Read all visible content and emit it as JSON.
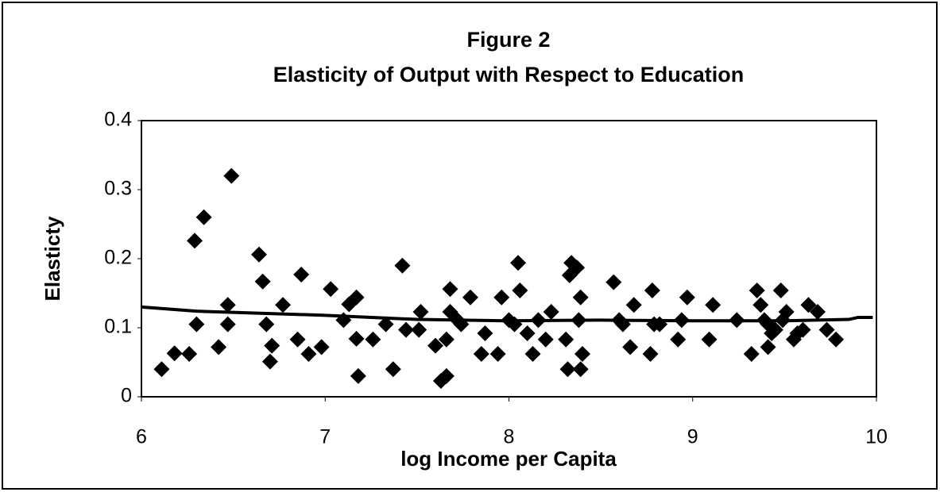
{
  "chart_data": {
    "type": "scatter",
    "title": "Figure 2",
    "subtitle": "Elasticity of Output with Respect to Education",
    "x_label": "log Income per Capita",
    "y_label": "Elasticty",
    "xlim": [
      6,
      10
    ],
    "xticks": [
      6,
      7,
      8,
      9,
      10
    ],
    "ylim": [
      0,
      0.4
    ],
    "yticks": [
      0,
      0.1,
      0.2,
      0.3,
      0.4
    ],
    "grid": false,
    "color": "#000000",
    "points": {
      "x": [
        6.11,
        6.18,
        6.26,
        6.29,
        6.34,
        6.3,
        6.42,
        6.47,
        6.47,
        6.49,
        6.64,
        6.66,
        6.68,
        6.71,
        6.7,
        6.77,
        6.85,
        6.87,
        6.91,
        6.98,
        7.03,
        7.1,
        7.13,
        7.17,
        7.17,
        7.18,
        7.26,
        7.33,
        7.37,
        7.42,
        7.44,
        7.51,
        7.52,
        7.6,
        7.63,
        7.66,
        7.66,
        7.68,
        7.68,
        7.72,
        7.74,
        7.79,
        7.85,
        7.87,
        7.94,
        7.96,
        8.0,
        8.03,
        8.05,
        8.06,
        8.1,
        8.13,
        8.16,
        8.2,
        8.23,
        8.31,
        8.32,
        8.33,
        8.34,
        8.37,
        8.38,
        8.39,
        8.4,
        8.39,
        8.57,
        8.6,
        8.62,
        8.66,
        8.68,
        8.77,
        8.78,
        8.79,
        8.82,
        8.92,
        8.94,
        8.97,
        9.09,
        9.11,
        9.24,
        9.32,
        9.35,
        9.37,
        9.39,
        9.41,
        9.41,
        9.43,
        9.45,
        9.48,
        9.49,
        9.51,
        9.55,
        9.57,
        9.6,
        9.63,
        9.68,
        9.73,
        9.78
      ],
      "y": [
        0.04,
        0.063,
        0.062,
        0.226,
        0.26,
        0.105,
        0.072,
        0.133,
        0.105,
        0.32,
        0.206,
        0.167,
        0.105,
        0.074,
        0.051,
        0.133,
        0.083,
        0.177,
        0.062,
        0.072,
        0.156,
        0.111,
        0.134,
        0.144,
        0.084,
        0.03,
        0.083,
        0.105,
        0.04,
        0.19,
        0.097,
        0.097,
        0.123,
        0.074,
        0.023,
        0.03,
        0.083,
        0.156,
        0.123,
        0.111,
        0.105,
        0.144,
        0.062,
        0.092,
        0.062,
        0.144,
        0.111,
        0.105,
        0.194,
        0.154,
        0.092,
        0.062,
        0.111,
        0.083,
        0.123,
        0.083,
        0.04,
        0.176,
        0.194,
        0.187,
        0.111,
        0.144,
        0.062,
        0.04,
        0.166,
        0.111,
        0.105,
        0.072,
        0.133,
        0.062,
        0.154,
        0.105,
        0.105,
        0.083,
        0.111,
        0.144,
        0.083,
        0.133,
        0.111,
        0.062,
        0.154,
        0.133,
        0.111,
        0.105,
        0.072,
        0.092,
        0.097,
        0.154,
        0.111,
        0.123,
        0.083,
        0.092,
        0.097,
        0.133,
        0.123,
        0.097,
        0.083
      ]
    },
    "trend_line": {
      "x": [
        6.0,
        6.3,
        7.0,
        7.5,
        8.0,
        8.5,
        9.0,
        9.5,
        9.85,
        9.9,
        9.98
      ],
      "y": [
        0.13,
        0.124,
        0.118,
        0.112,
        0.11,
        0.111,
        0.11,
        0.11,
        0.112,
        0.115,
        0.115
      ]
    }
  }
}
